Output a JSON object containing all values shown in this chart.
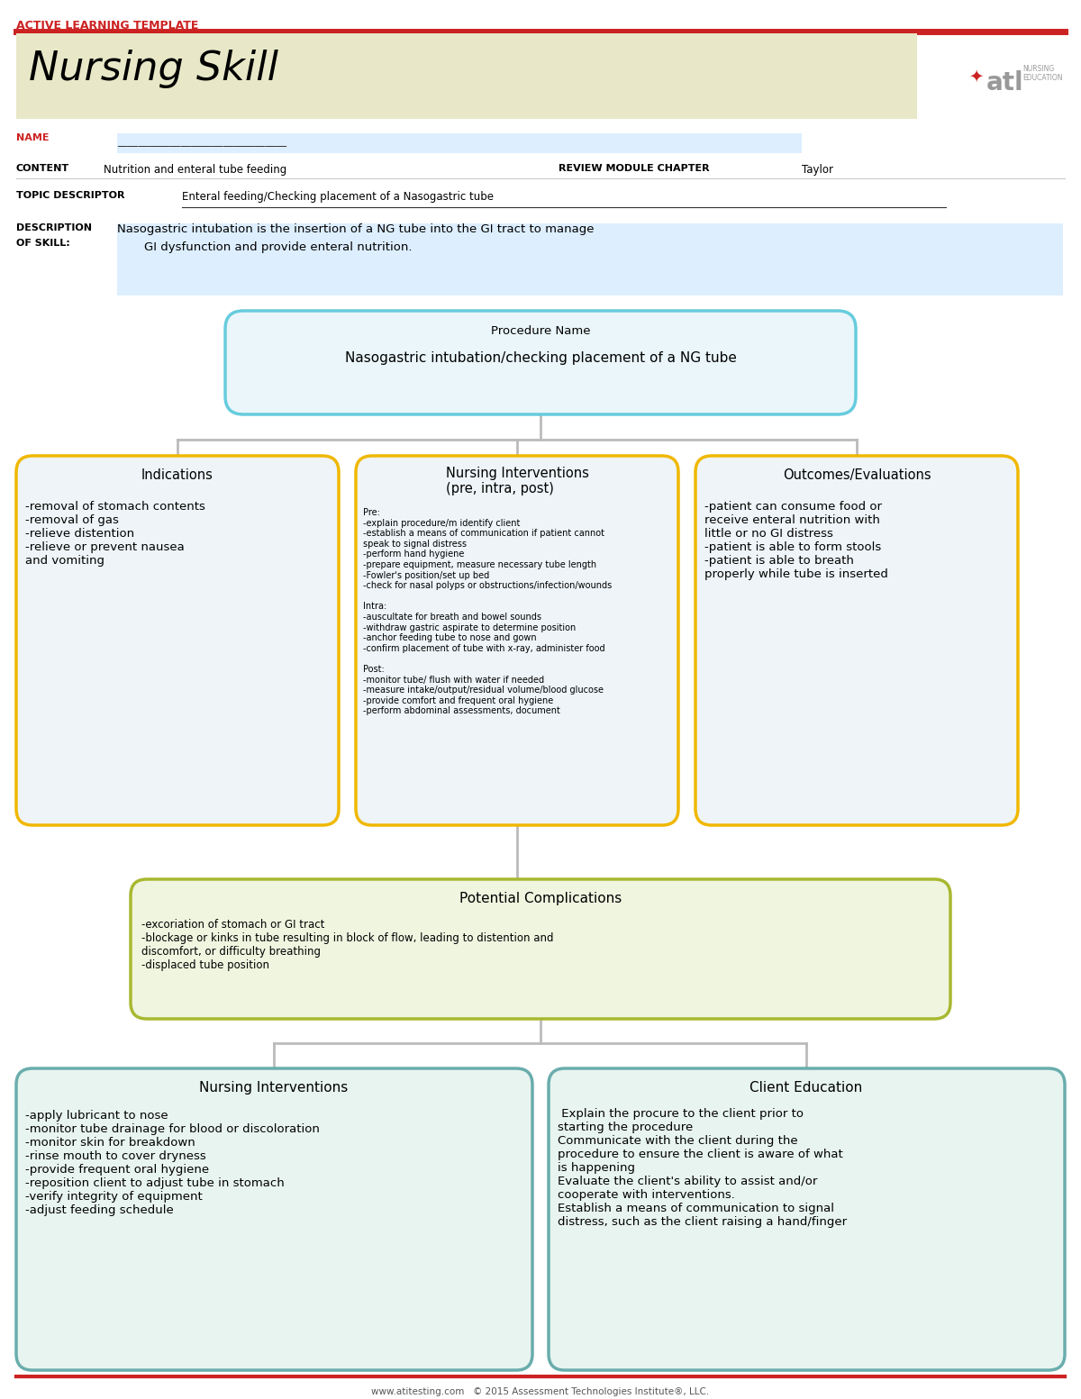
{
  "title": "Nursing Skill",
  "header_label": "ACTIVE LEARNING TEMPLATE",
  "header_bg": "#e8e8c8",
  "red_color": "#cc2222",
  "name_label": "NAME",
  "content_label": "CONTENT",
  "content_value": "Nutrition and enteral tube feeding",
  "review_label": "REVIEW MODULE CHAPTER",
  "review_value": "Taylor",
  "topic_label": "TOPIC DESCRIPTOR",
  "topic_value": "Enteral feeding/Checking placement of a Nasogastric tube",
  "desc_label1": "DESCRIPTION",
  "desc_label2": "OF SKILL:",
  "desc_line1": "Nasogastric intubation is the insertion of a NG tube into the GI tract to manage",
  "desc_line2": "   GI dysfunction and provide enteral nutrition.",
  "proc_title": "Procedure Name",
  "proc_value": "Nasogastric intubation/checking placement of a NG tube",
  "proc_border": "#66ccdd",
  "proc_bg": "#eaf6fa",
  "box1_title": "Indications",
  "box1_text": "-removal of stomach contents\n-removal of gas\n-relieve distention\n-relieve or prevent nausea\nand vomiting",
  "box2_title": "Nursing Interventions\n(pre, intra, post)",
  "box2_text": "Pre:\n-explain procedure/m identify client\n-establish a means of communication if patient cannot\nspeak to signal distress\n-perform hand hygiene\n-prepare equipment, measure necessary tube length\n-Fowler's position/set up bed\n-check for nasal polyps or obstructions/infection/wounds\n\nIntra:\n-auscultate for breath and bowel sounds\n-withdraw gastric aspirate to determine position\n-anchor feeding tube to nose and gown\n-confirm placement of tube with x-ray, administer food\n\nPost:\n-monitor tube/ flush with water if needed\n-measure intake/output/residual volume/blood glucose\n-provide comfort and frequent oral hygiene\n-perform abdominal assessments, document",
  "box3_title": "Outcomes/Evaluations",
  "box3_text": "-patient can consume food or\nreceive enteral nutrition with\nlittle or no GI distress\n-patient is able to form stools\n-patient is able to breath\nproperly while tube is inserted",
  "yellow_border": "#f0b800",
  "box_light_bg": "#eef4f8",
  "comp_title": "Potential Complications",
  "comp_text": "-excoriation of stomach or GI tract\n-blockage or kinks in tube resulting in block of flow, leading to distention and\ndiscomfort, or difficulty breathing\n-displaced tube position",
  "comp_border": "#a8b830",
  "comp_bg": "#f0f5e0",
  "teal_border": "#6aadad",
  "teal_bg": "#e8f4f0",
  "ni2_title": "Nursing Interventions",
  "ni2_text": "-apply lubricant to nose\n-monitor tube drainage for blood or discoloration\n-monitor skin for breakdown\n-rinse mouth to cover dryness\n-provide frequent oral hygiene\n-reposition client to adjust tube in stomach\n-verify integrity of equipment\n-adjust feeding schedule",
  "ce_title": "Client Education",
  "ce_text": " Explain the procure to the client prior to\nstarting the procedure\nCommunicate with the client during the\nprocedure to ensure the client is aware of what\nis happening\nEvaluate the client's ability to assist and/or\ncooperate with interventions.\nEstablish a means of communication to signal\ndistress, such as the client raising a hand/finger",
  "footer_text": "www.atitesting.com   © 2015 Assessment Technologies Institute®, LLC.",
  "bg_color": "#ffffff",
  "name_field_bg": "#ddeeff",
  "info_field_bg": "#ddeeff",
  "connector_color": "#bbbbbb"
}
